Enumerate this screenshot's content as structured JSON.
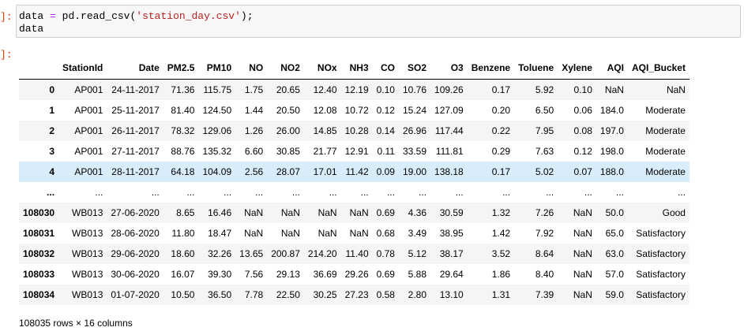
{
  "prompts": {
    "input": "]:",
    "output": "]:"
  },
  "code": {
    "line1": {
      "var": "data",
      "op1": "=",
      "call": "pd.read_csv(",
      "arg": "'station_day.csv'",
      "close": ");"
    },
    "line2": "data"
  },
  "table": {
    "columns": [
      "",
      "StationId",
      "Date",
      "PM2.5",
      "PM10",
      "NO",
      "NO2",
      "NOx",
      "NH3",
      "CO",
      "SO2",
      "O3",
      "Benzene",
      "Toluene",
      "Xylene",
      "AQI",
      "AQI_Bucket"
    ],
    "rows": [
      [
        "0",
        "AP001",
        "24-11-2017",
        "71.36",
        "115.75",
        "1.75",
        "20.65",
        "12.40",
        "12.19",
        "0.10",
        "10.76",
        "109.26",
        "0.17",
        "5.92",
        "0.10",
        "NaN",
        "NaN"
      ],
      [
        "1",
        "AP001",
        "25-11-2017",
        "81.40",
        "124.50",
        "1.44",
        "20.50",
        "12.08",
        "10.72",
        "0.12",
        "15.24",
        "127.09",
        "0.20",
        "6.50",
        "0.06",
        "184.0",
        "Moderate"
      ],
      [
        "2",
        "AP001",
        "26-11-2017",
        "78.32",
        "129.06",
        "1.26",
        "26.00",
        "14.85",
        "10.28",
        "0.14",
        "26.96",
        "117.44",
        "0.22",
        "7.95",
        "0.08",
        "197.0",
        "Moderate"
      ],
      [
        "3",
        "AP001",
        "27-11-2017",
        "88.76",
        "135.32",
        "6.60",
        "30.85",
        "21.77",
        "12.91",
        "0.11",
        "33.59",
        "111.81",
        "0.29",
        "7.63",
        "0.12",
        "198.0",
        "Moderate"
      ],
      [
        "4",
        "AP001",
        "28-11-2017",
        "64.18",
        "104.09",
        "2.56",
        "28.07",
        "17.01",
        "11.42",
        "0.09",
        "19.00",
        "138.18",
        "0.17",
        "5.02",
        "0.07",
        "188.0",
        "Moderate"
      ],
      [
        "...",
        "...",
        "...",
        "...",
        "...",
        "...",
        "...",
        "...",
        "...",
        "...",
        "...",
        "...",
        "...",
        "...",
        "...",
        "...",
        "..."
      ],
      [
        "108030",
        "WB013",
        "27-06-2020",
        "8.65",
        "16.46",
        "NaN",
        "NaN",
        "NaN",
        "NaN",
        "0.69",
        "4.36",
        "30.59",
        "1.32",
        "7.26",
        "NaN",
        "50.0",
        "Good"
      ],
      [
        "108031",
        "WB013",
        "28-06-2020",
        "11.80",
        "18.47",
        "NaN",
        "NaN",
        "NaN",
        "NaN",
        "0.68",
        "3.49",
        "38.95",
        "1.42",
        "7.92",
        "NaN",
        "65.0",
        "Satisfactory"
      ],
      [
        "108032",
        "WB013",
        "29-06-2020",
        "18.60",
        "32.26",
        "13.65",
        "200.87",
        "214.20",
        "11.40",
        "0.78",
        "5.12",
        "38.17",
        "3.52",
        "8.64",
        "NaN",
        "63.0",
        "Satisfactory"
      ],
      [
        "108033",
        "WB013",
        "30-06-2020",
        "16.07",
        "39.30",
        "7.56",
        "29.13",
        "36.69",
        "29.26",
        "0.69",
        "5.88",
        "29.64",
        "1.86",
        "8.40",
        "NaN",
        "57.0",
        "Satisfactory"
      ],
      [
        "108034",
        "WB013",
        "01-07-2020",
        "10.50",
        "36.50",
        "7.78",
        "22.50",
        "30.25",
        "27.23",
        "0.58",
        "2.80",
        "13.10",
        "1.31",
        "7.39",
        "NaN",
        "59.0",
        "Satisfactory"
      ]
    ],
    "highlight_row_index": 4
  },
  "summary": "108035 rows × 16 columns",
  "colors": {
    "prompt": "#d84315",
    "code_background": "#f7f7f7",
    "row_highlight": "#d8ecf9"
  }
}
